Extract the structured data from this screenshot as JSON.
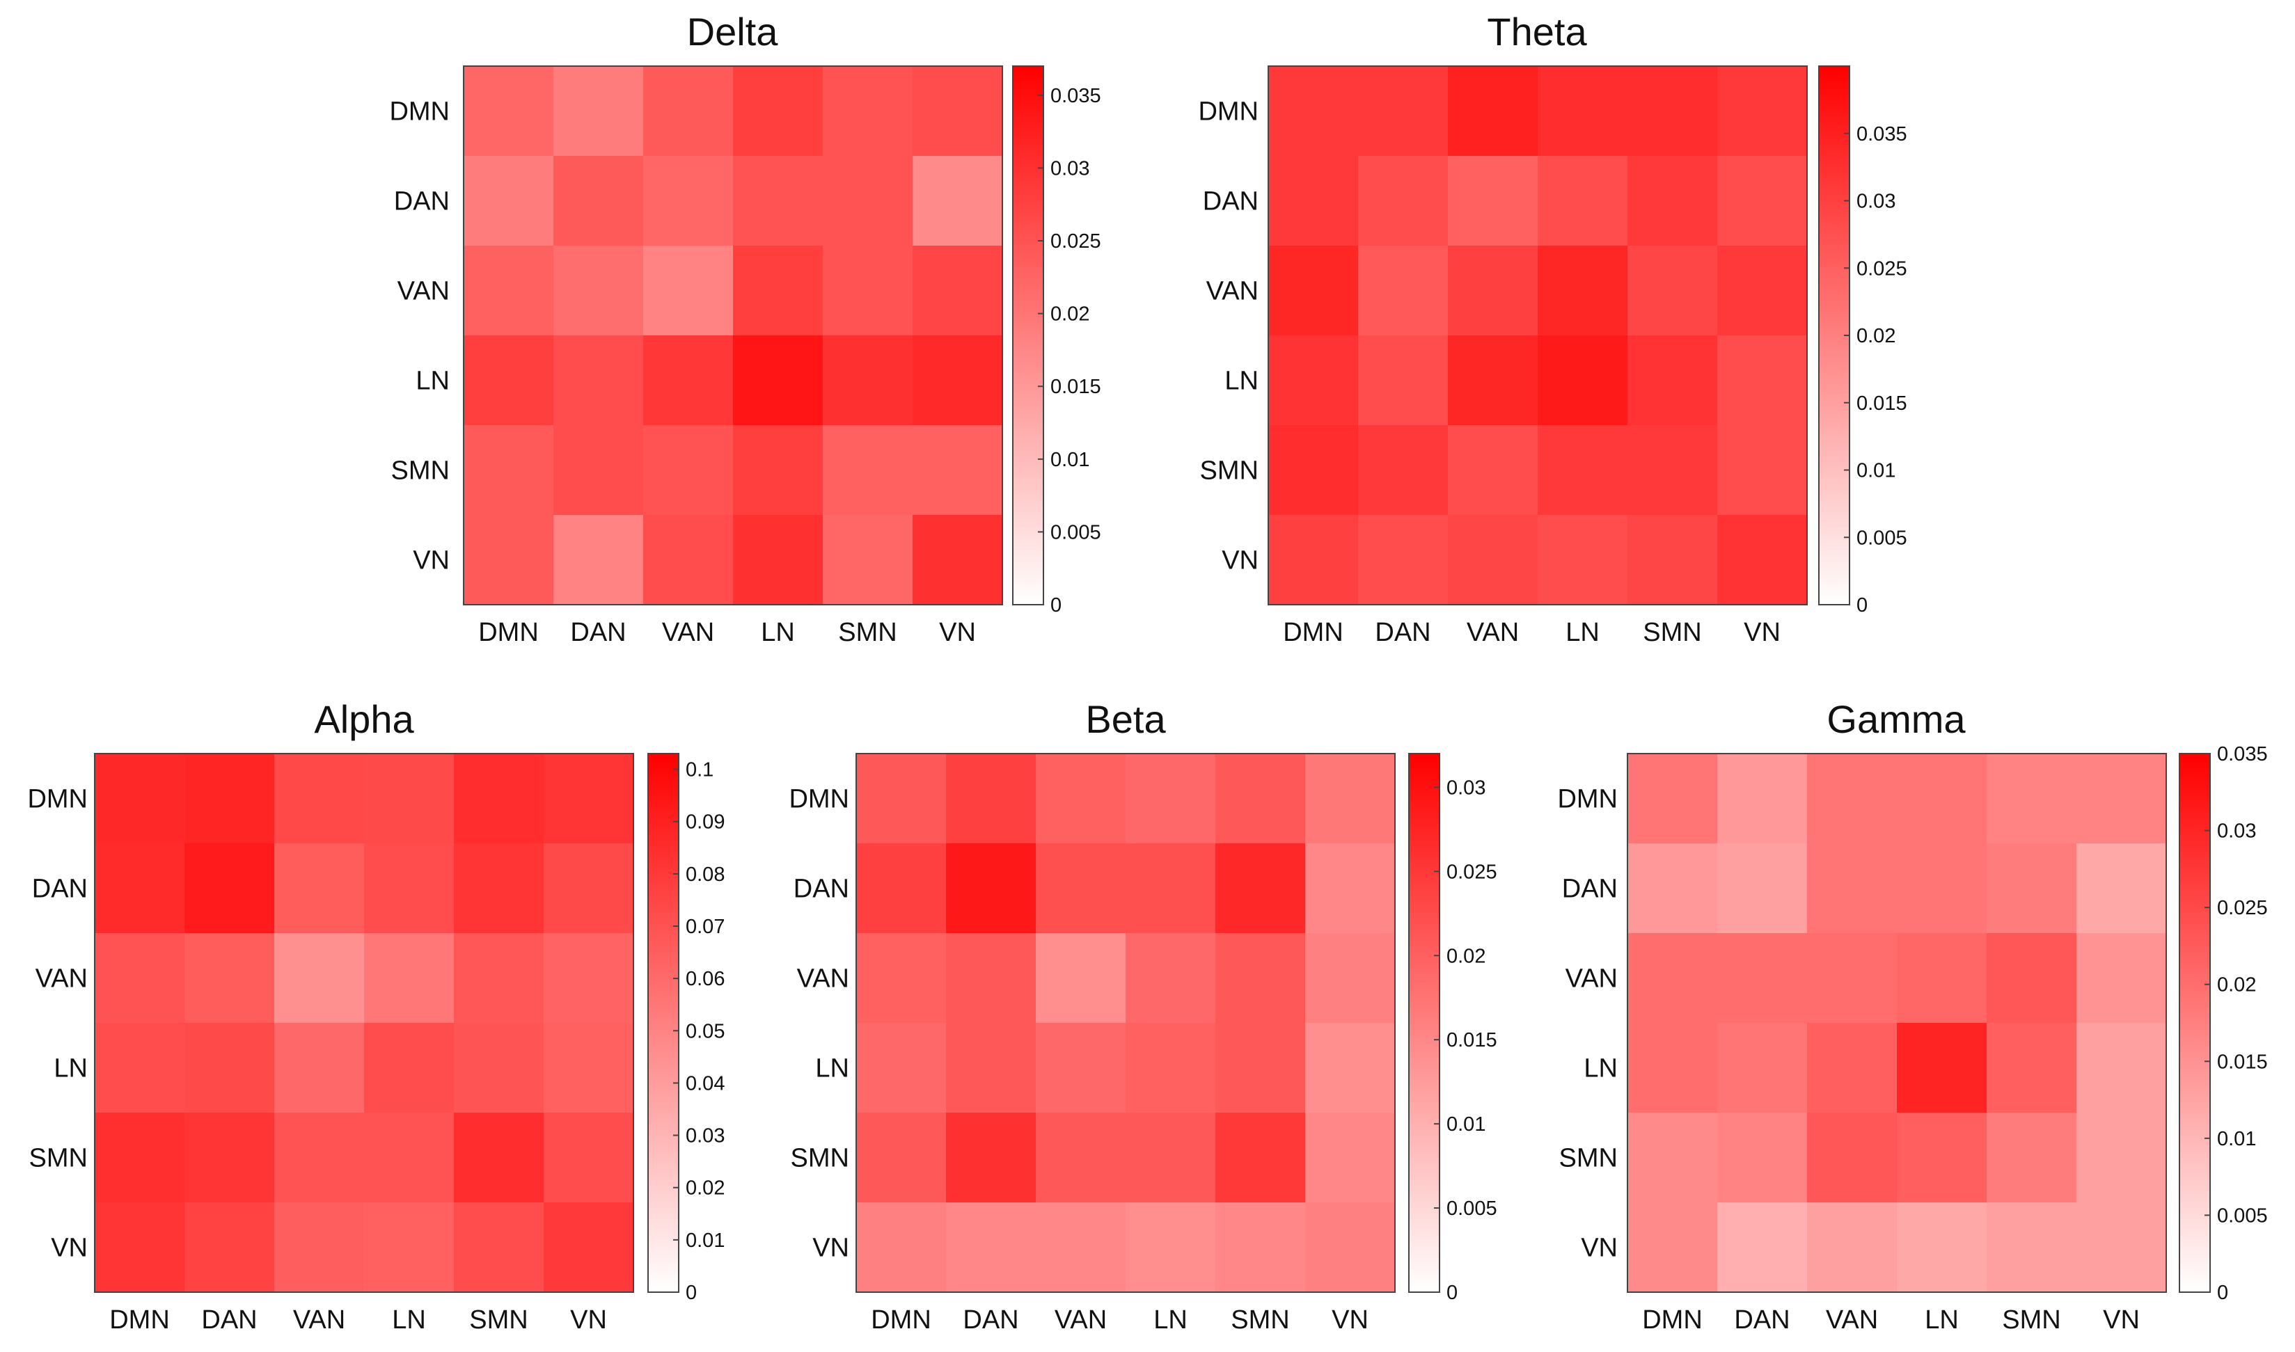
{
  "figure": {
    "colormap": {
      "low": "#ffffff",
      "high": "#ff0000"
    }
  },
  "chart_data": [
    {
      "type": "heatmap",
      "title": "Delta",
      "categories": [
        "DMN",
        "DAN",
        "VAN",
        "LN",
        "SMN",
        "VN"
      ],
      "colorbar": {
        "min": 0,
        "max": 0.037,
        "ticks": [
          "0",
          "0.005",
          "0.01",
          "0.015",
          "0.02",
          "0.025",
          "0.03",
          "0.035"
        ]
      },
      "values": [
        [
          0.022,
          0.019,
          0.024,
          0.028,
          0.025,
          0.026
        ],
        [
          0.019,
          0.024,
          0.022,
          0.025,
          0.025,
          0.017
        ],
        [
          0.023,
          0.021,
          0.018,
          0.028,
          0.025,
          0.027
        ],
        [
          0.028,
          0.026,
          0.029,
          0.034,
          0.03,
          0.031
        ],
        [
          0.024,
          0.026,
          0.025,
          0.028,
          0.023,
          0.023
        ],
        [
          0.024,
          0.018,
          0.026,
          0.03,
          0.022,
          0.03
        ]
      ]
    },
    {
      "type": "heatmap",
      "title": "Theta",
      "categories": [
        "DMN",
        "DAN",
        "VAN",
        "LN",
        "SMN",
        "VN"
      ],
      "colorbar": {
        "min": 0,
        "max": 0.04,
        "ticks": [
          "0",
          "0.005",
          "0.01",
          "0.015",
          "0.02",
          "0.025",
          "0.03",
          "0.035"
        ]
      },
      "values": [
        [
          0.031,
          0.031,
          0.035,
          0.033,
          0.033,
          0.031
        ],
        [
          0.031,
          0.028,
          0.025,
          0.028,
          0.031,
          0.028
        ],
        [
          0.034,
          0.026,
          0.03,
          0.034,
          0.029,
          0.031
        ],
        [
          0.032,
          0.028,
          0.034,
          0.036,
          0.032,
          0.028
        ],
        [
          0.033,
          0.031,
          0.028,
          0.031,
          0.031,
          0.028
        ],
        [
          0.03,
          0.028,
          0.029,
          0.028,
          0.029,
          0.032
        ]
      ]
    },
    {
      "type": "heatmap",
      "title": "Alpha",
      "categories": [
        "DMN",
        "DAN",
        "VAN",
        "LN",
        "SMN",
        "VN"
      ],
      "colorbar": {
        "min": 0,
        "max": 0.103,
        "ticks": [
          "0",
          "0.01",
          "0.02",
          "0.03",
          "0.04",
          "0.05",
          "0.06",
          "0.07",
          "0.08",
          "0.09",
          "0.1"
        ]
      },
      "values": [
        [
          0.087,
          0.088,
          0.074,
          0.073,
          0.085,
          0.082
        ],
        [
          0.086,
          0.092,
          0.066,
          0.072,
          0.082,
          0.073
        ],
        [
          0.07,
          0.066,
          0.045,
          0.055,
          0.068,
          0.063
        ],
        [
          0.072,
          0.073,
          0.061,
          0.072,
          0.069,
          0.064
        ],
        [
          0.084,
          0.082,
          0.07,
          0.07,
          0.085,
          0.072
        ],
        [
          0.082,
          0.076,
          0.065,
          0.064,
          0.072,
          0.08
        ]
      ]
    },
    {
      "type": "heatmap",
      "title": "Beta",
      "categories": [
        "DMN",
        "DAN",
        "VAN",
        "LN",
        "SMN",
        "VN"
      ],
      "colorbar": {
        "min": 0,
        "max": 0.032,
        "ticks": [
          "0",
          "0.005",
          "0.01",
          "0.015",
          "0.02",
          "0.025",
          "0.03"
        ]
      },
      "values": [
        [
          0.021,
          0.024,
          0.02,
          0.019,
          0.021,
          0.017
        ],
        [
          0.024,
          0.029,
          0.022,
          0.022,
          0.027,
          0.015
        ],
        [
          0.02,
          0.021,
          0.014,
          0.019,
          0.021,
          0.016
        ],
        [
          0.019,
          0.021,
          0.019,
          0.02,
          0.021,
          0.014
        ],
        [
          0.021,
          0.026,
          0.021,
          0.021,
          0.025,
          0.015
        ],
        [
          0.016,
          0.015,
          0.015,
          0.014,
          0.015,
          0.016
        ]
      ]
    },
    {
      "type": "heatmap",
      "title": "Gamma",
      "categories": [
        "DMN",
        "DAN",
        "VAN",
        "LN",
        "SMN",
        "VN"
      ],
      "colorbar": {
        "min": 0,
        "max": 0.035,
        "ticks": [
          "0",
          "0.005",
          "0.01",
          "0.015",
          "0.02",
          "0.025",
          "0.03",
          "0.035"
        ]
      },
      "values": [
        [
          0.019,
          0.014,
          0.019,
          0.019,
          0.017,
          0.017
        ],
        [
          0.014,
          0.013,
          0.019,
          0.019,
          0.018,
          0.012
        ],
        [
          0.02,
          0.02,
          0.02,
          0.021,
          0.023,
          0.015
        ],
        [
          0.02,
          0.019,
          0.022,
          0.03,
          0.022,
          0.013
        ],
        [
          0.016,
          0.017,
          0.023,
          0.022,
          0.018,
          0.013
        ],
        [
          0.016,
          0.011,
          0.013,
          0.012,
          0.013,
          0.013
        ]
      ]
    }
  ]
}
